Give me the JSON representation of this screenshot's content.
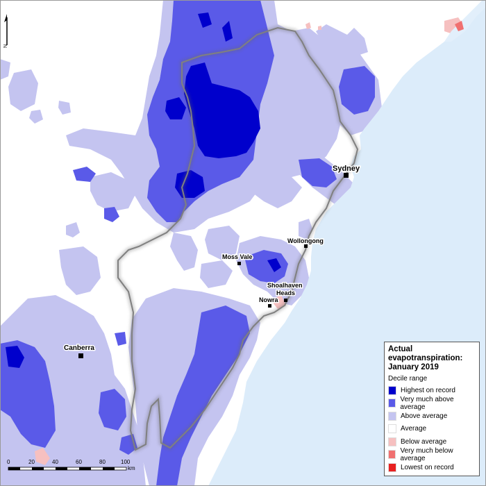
{
  "legend": {
    "title_line1": "Actual",
    "title_line2": "evapotranspiration:",
    "title_line3": "January 2019",
    "subtitle": "Decile range",
    "items": [
      {
        "label": "Highest on record",
        "color": "#0000cc"
      },
      {
        "label": "Very much above average",
        "color": "#5a5ae8"
      },
      {
        "label": "Above average",
        "color": "#c4c4f0"
      },
      {
        "label": "Average",
        "color": "#ffffff"
      },
      {
        "label": "Below average",
        "color": "#f6c0c0"
      },
      {
        "label": "Very much below average",
        "color": "#f07070"
      },
      {
        "label": "Lowest on record",
        "color": "#e82020"
      }
    ]
  },
  "towns": {
    "sydney": "Sydney",
    "wollongong": "Wollongong",
    "moss_vale": "Moss Vale",
    "shoalhaven_line1": "Shoalhaven",
    "shoalhaven_line2": "Heads",
    "nowra": "Nowra",
    "canberra": "Canberra"
  },
  "scale": {
    "ticks": [
      "0",
      "20",
      "40",
      "60",
      "80",
      "100"
    ],
    "unit": "km"
  },
  "north_label": "N",
  "colors": {
    "ocean": "#dcecfa",
    "highest": "#0000cc",
    "very_much_above": "#5a5ae8",
    "above": "#c4c4f0",
    "average": "#ffffff",
    "below": "#f6c0c0",
    "very_much_below": "#f07070"
  }
}
